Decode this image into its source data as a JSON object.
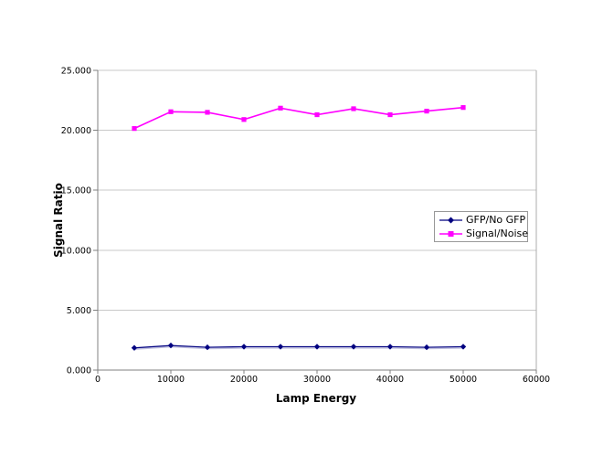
{
  "chart_data": {
    "type": "line",
    "title": "",
    "xlabel": "Lamp Energy",
    "ylabel": "Signal Ratio",
    "x": [
      5000,
      10000,
      15000,
      20000,
      25000,
      30000,
      35000,
      40000,
      45000,
      50000
    ],
    "series": [
      {
        "name": "GFP/No GFP",
        "color": "#000080",
        "marker": "diamond",
        "values": [
          1.85,
          2.05,
          1.9,
          1.95,
          1.95,
          1.95,
          1.95,
          1.95,
          1.9,
          1.95
        ]
      },
      {
        "name": "Signal/Noise",
        "color": "#FF00FF",
        "marker": "square",
        "values": [
          20.15,
          21.55,
          21.5,
          20.9,
          21.85,
          21.3,
          21.8,
          21.3,
          21.6,
          21.9
        ]
      }
    ],
    "x_axis": {
      "range": [
        0,
        60000
      ],
      "tick_values": [
        0,
        10000,
        20000,
        30000,
        40000,
        50000,
        60000
      ],
      "tick_labels": [
        "0",
        "10000",
        "20000",
        "30000",
        "40000",
        "50000",
        "60000"
      ]
    },
    "y_axis": {
      "range": [
        0,
        25
      ],
      "tick_values": [
        0,
        5,
        10,
        15,
        20,
        25
      ],
      "tick_labels": [
        "0.000",
        "5.000",
        "10.000",
        "15.000",
        "20.000",
        "25.000"
      ]
    },
    "grid": "horizontal",
    "legend_position": "middle-right",
    "colors": {
      "background": "#FFFFFF",
      "gridline": "#C9C9C9",
      "plot_border": "#ADADAD",
      "axis": "#808080",
      "text": "#000000"
    }
  }
}
